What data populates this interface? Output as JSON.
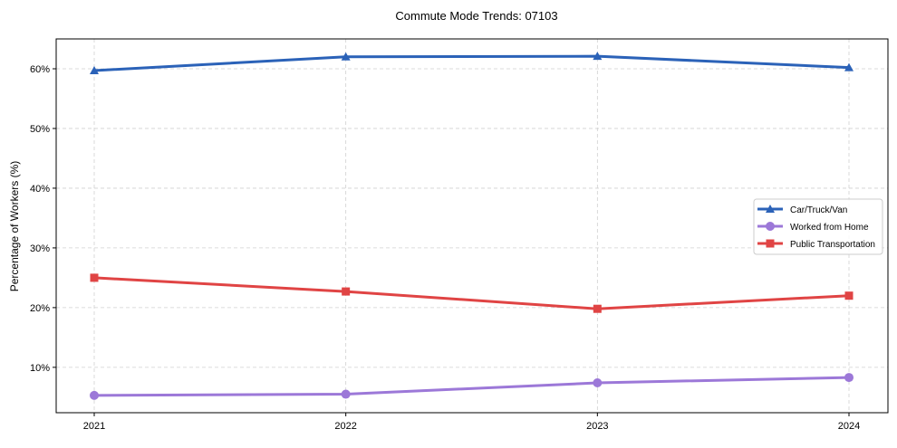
{
  "chart_data": {
    "type": "line",
    "title": "Commute Mode Trends: 07103",
    "xlabel": "",
    "ylabel": "Percentage of Workers (%)",
    "categories": [
      "2021",
      "2022",
      "2023",
      "2024"
    ],
    "ylim": [
      2.4,
      65
    ],
    "yticks": [
      10,
      20,
      30,
      40,
      50,
      60
    ],
    "ytick_labels": [
      "10%",
      "20%",
      "30%",
      "40%",
      "50%",
      "60%"
    ],
    "grid": true,
    "legend_position": "center-right",
    "series": [
      {
        "name": "Car/Truck/Van",
        "color": "#2b62b8",
        "marker": "triangle",
        "values": [
          59.7,
          62.0,
          62.1,
          60.2
        ]
      },
      {
        "name": "Worked from Home",
        "color": "#9c78d8",
        "marker": "circle",
        "values": [
          5.3,
          5.5,
          7.4,
          8.3
        ]
      },
      {
        "name": "Public Transportation",
        "color": "#e04444",
        "marker": "square",
        "values": [
          25.0,
          22.7,
          19.8,
          22.0
        ]
      }
    ]
  }
}
